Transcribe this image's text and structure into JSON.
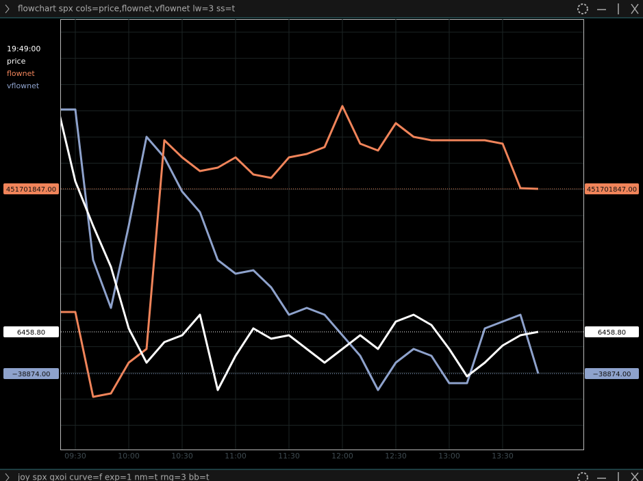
{
  "window": {
    "title": "flowchart spx cols=price,flownet,vflownet lw=3 ss=t"
  },
  "chart_data": {
    "type": "line",
    "legend_time": "19:49:00",
    "categories": [
      null,
      "09:30",
      null,
      null,
      "10:00",
      null,
      null,
      "10:30",
      null,
      null,
      "11:00",
      null,
      null,
      "11:30",
      null,
      null,
      "12:00",
      null,
      null,
      "12:30",
      null,
      null,
      "13:00",
      null,
      null,
      "13:30",
      null,
      null
    ],
    "grid": true,
    "series": [
      {
        "name": "price",
        "color": "#ffffff",
        "ylim": [
          6448.48,
          6486.22
        ],
        "last_value_label": "6458.80",
        "values": [
          6478.6,
          6472.0,
          6468.1,
          6464.5,
          6459.1,
          6456.1,
          6457.9,
          6458.5,
          6460.3,
          6453.7,
          6456.7,
          6459.1,
          6458.2,
          6458.5,
          6457.3,
          6456.1,
          6457.3,
          6458.5,
          6457.3,
          6459.7,
          6460.3,
          6459.4,
          6457.3,
          6454.9,
          6456.1,
          6457.6,
          6458.5,
          6458.8
        ]
      },
      {
        "name": "flownet",
        "color": "#f0845a",
        "ylim": [
          -310298153,
          947701847
        ],
        "last_value_label": "451701847.00",
        "values": [
          91701847,
          91701847,
          -156298153,
          -146298153,
          -56298153,
          -16298153,
          593701847,
          543701847,
          503701847,
          513701847,
          543701847,
          493701847,
          483701847,
          543701847,
          553701847,
          573701847,
          693701847,
          583701847,
          563701847,
          643701847,
          603701847,
          593701847,
          593701847,
          593701847,
          593701847,
          583701847,
          453701847,
          451701847
        ]
      },
      {
        "name": "vflownet",
        "color": "#8ea2cc",
        "ylim": [
          -149874,
          479126
        ],
        "last_value_label": "−38874.00",
        "values": [
          347126,
          347126,
          127126,
          57126,
          177126,
          307126,
          277126,
          227126,
          197126,
          127126,
          107126,
          112126,
          87126,
          47126,
          57126,
          47126,
          17126,
          -12874,
          -62874,
          -22874,
          -2874,
          -12874,
          -52874,
          -52874,
          27126,
          37126,
          47126,
          -38874
        ]
      }
    ]
  },
  "next_window": {
    "title": "joy spx gxoi curve=f exp=1 nm=t rng=3 bb=t"
  }
}
